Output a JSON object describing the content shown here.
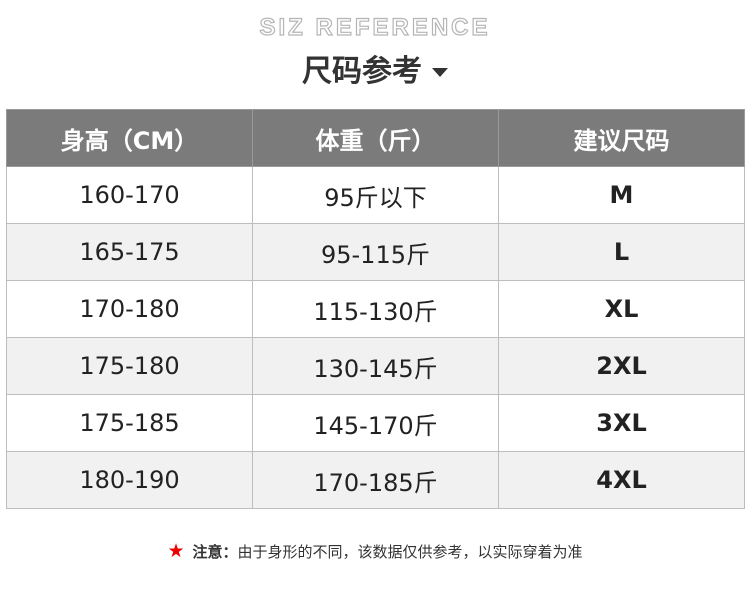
{
  "header": {
    "subtitle": "SIZ REFERENCE",
    "title": "尺码参考"
  },
  "table": {
    "columns": [
      "身高（CM）",
      "体重（斤）",
      "建议尺码"
    ],
    "rows": [
      [
        "160-170",
        "95斤以下",
        "M"
      ],
      [
        "165-175",
        "95-115斤",
        "L"
      ],
      [
        "170-180",
        "115-130斤",
        "XL"
      ],
      [
        "175-180",
        "130-145斤",
        "2XL"
      ],
      [
        "175-185",
        "145-170斤",
        "3XL"
      ],
      [
        "180-190",
        "170-185斤",
        "4XL"
      ]
    ]
  },
  "note": {
    "icon": "star-icon",
    "label": "注意：",
    "text": "由于身形的不同，该数据仅供参考，以实际穿着为准",
    "star_color": "#e00000"
  }
}
